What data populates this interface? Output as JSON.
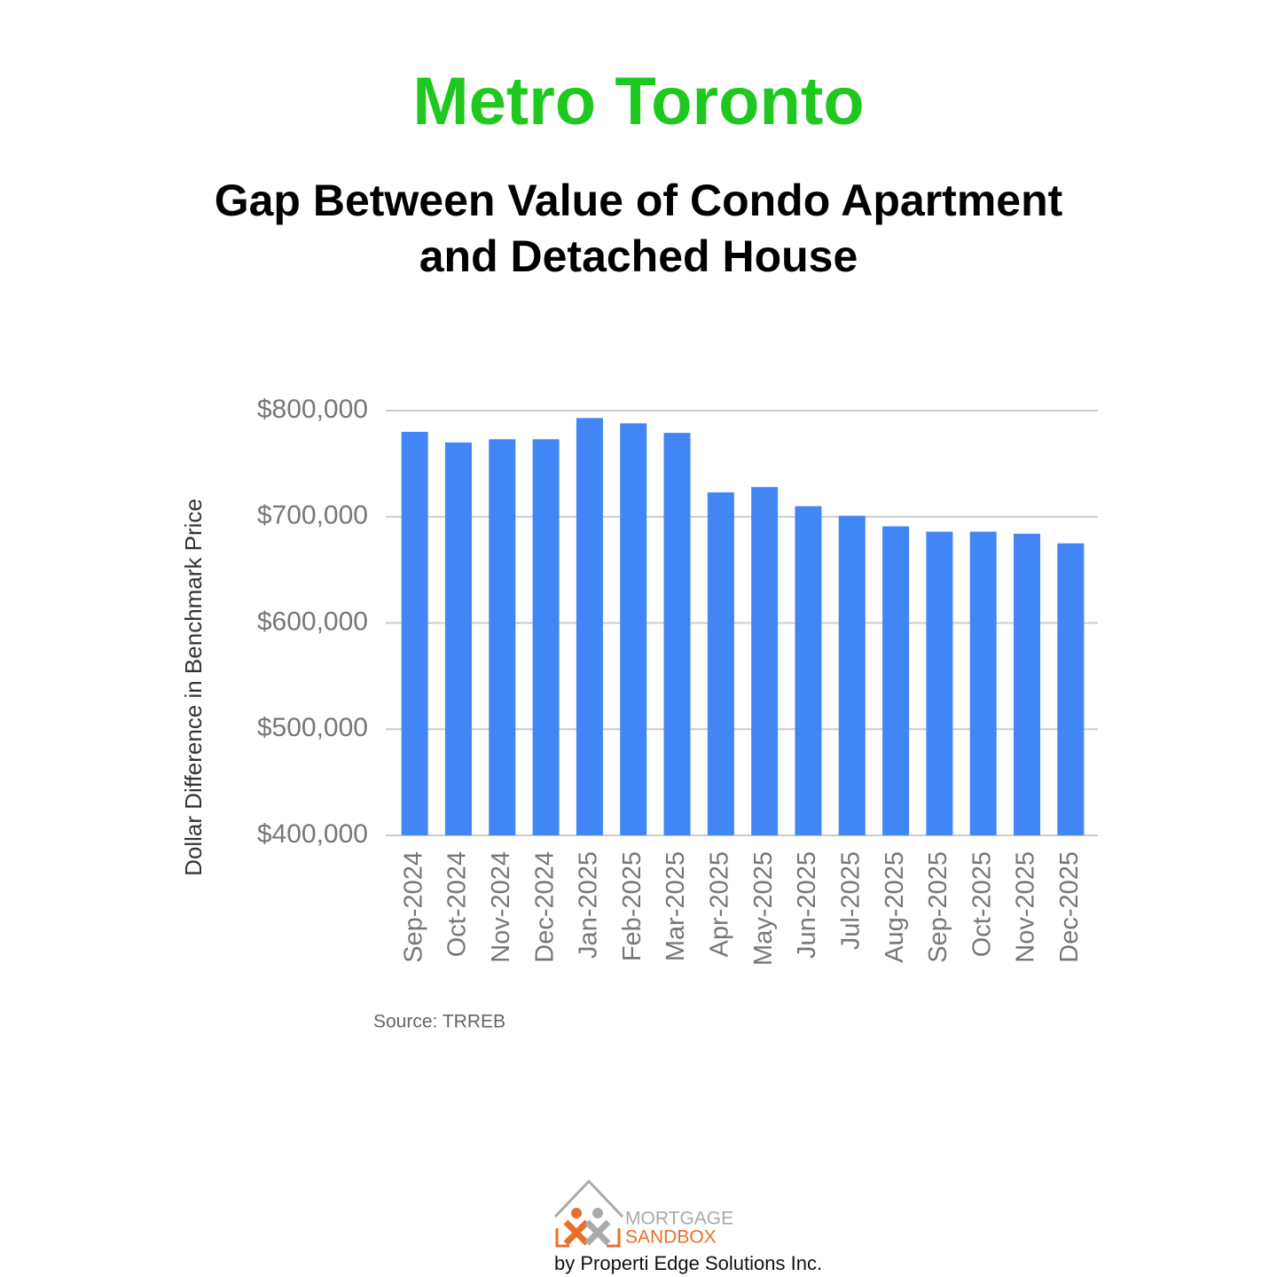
{
  "chart_data": {
    "type": "bar",
    "title": "Metro Toronto",
    "subtitle": [
      "Gap Between Value of Condo Apartment",
      "and Detached House"
    ],
    "y_label": "Dollar Difference in Benchmark Price",
    "source": "Source: TRREB",
    "categories": [
      "Sep-2024",
      "Oct-2024",
      "Nov-2024",
      "Dec-2024",
      "Jan-2025",
      "Feb-2025",
      "Mar-2025",
      "Apr-2025",
      "May-2025",
      "Jun-2025",
      "Jul-2025",
      "Aug-2025",
      "Sep-2025",
      "Oct-2025",
      "Nov-2025",
      "Dec-2025"
    ],
    "values": [
      780000,
      770000,
      773000,
      773000,
      793000,
      788000,
      779000,
      723000,
      728000,
      710000,
      701000,
      691000,
      686000,
      686000,
      684000,
      675000
    ],
    "color": "#4285f4",
    "ylim": [
      400000,
      800000
    ],
    "yticks": [
      {
        "value": 400000,
        "label": "$400,000"
      },
      {
        "value": 500000,
        "label": "$500,000"
      },
      {
        "value": 600000,
        "label": "$600,000"
      },
      {
        "value": 700000,
        "label": "$700,000"
      },
      {
        "value": 800000,
        "label": "$800,000"
      }
    ],
    "grid": true
  },
  "logo": {
    "line1": "MORTGAGE",
    "line2": "SANDBOX",
    "byline": "by Properti Edge Solutions Inc."
  }
}
